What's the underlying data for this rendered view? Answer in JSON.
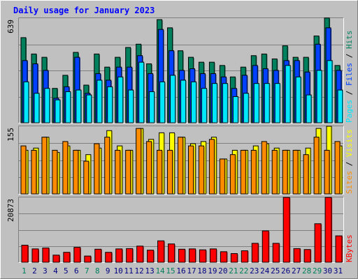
{
  "title": "Daily usage for January 2023",
  "colors": {
    "background": "#c0c0c0",
    "panel": "#c0c0c0",
    "grid": "#808080",
    "title": "#0000ff",
    "hits": "#00805c",
    "files": "#0040ff",
    "pages": "#00e8ff",
    "visits": "#ffff00",
    "sites": "#ff8c00",
    "kbytes": "#ff0000",
    "weekend_day": "#00805c",
    "weekday_day": "#000080"
  },
  "chart_data": [
    {
      "type": "bar",
      "name": "hits-files-pages",
      "ymax_label": "639",
      "ylim": [
        0,
        639
      ],
      "legend": {
        "pages": "Pages",
        "files": "Files",
        "hits": "Hits",
        "sep": " / "
      },
      "categories": [
        "1",
        "2",
        "3",
        "4",
        "5",
        "6",
        "7",
        "8",
        "9",
        "10",
        "11",
        "12",
        "13",
        "14",
        "15",
        "16",
        "17",
        "18",
        "19",
        "20",
        "21",
        "22",
        "23",
        "24",
        "25",
        "26",
        "27",
        "28",
        "29",
        "30",
        "31"
      ],
      "series": [
        {
          "name": "Hits",
          "values": [
            520,
            420,
            400,
            210,
            290,
            430,
            230,
            420,
            340,
            400,
            460,
            480,
            360,
            630,
            580,
            440,
            400,
            370,
            370,
            350,
            280,
            340,
            410,
            420,
            390,
            470,
            400,
            400,
            530,
            640,
            350
          ]
        },
        {
          "name": "Files",
          "values": [
            380,
            360,
            320,
            150,
            220,
            400,
            180,
            300,
            260,
            340,
            340,
            410,
            300,
            570,
            440,
            320,
            330,
            300,
            300,
            280,
            210,
            290,
            350,
            330,
            320,
            380,
            380,
            310,
            480,
            580,
            320
          ]
        },
        {
          "name": "Pages",
          "values": [
            250,
            180,
            210,
            140,
            190,
            200,
            170,
            260,
            220,
            280,
            200,
            370,
            190,
            250,
            290,
            260,
            250,
            210,
            240,
            240,
            160,
            180,
            240,
            240,
            240,
            350,
            280,
            170,
            320,
            380,
            200
          ]
        }
      ]
    },
    {
      "type": "bar",
      "name": "visits-sites",
      "ymax_label": "155",
      "ylim": [
        0,
        155
      ],
      "legend": {
        "sites": "Sites",
        "visits": "Visits",
        "sep": " / "
      },
      "categories": [
        "1",
        "2",
        "3",
        "4",
        "5",
        "6",
        "7",
        "8",
        "9",
        "10",
        "11",
        "12",
        "13",
        "14",
        "15",
        "16",
        "17",
        "18",
        "19",
        "20",
        "21",
        "22",
        "23",
        "24",
        "25",
        "26",
        "27",
        "28",
        "29",
        "30",
        "31"
      ],
      "series": [
        {
          "name": "Visits",
          "values": [
            100,
            105,
            130,
            95,
            110,
            100,
            90,
            105,
            145,
            110,
            100,
            150,
            125,
            140,
            140,
            130,
            115,
            120,
            130,
            80,
            100,
            100,
            110,
            115,
            105,
            100,
            100,
            105,
            150,
            155,
            110
          ]
        },
        {
          "name": "Sites",
          "values": [
            110,
            100,
            130,
            100,
            120,
            100,
            75,
            115,
            130,
            100,
            100,
            150,
            120,
            100,
            100,
            130,
            110,
            110,
            125,
            80,
            90,
            100,
            100,
            120,
            100,
            100,
            100,
            90,
            130,
            100,
            120
          ]
        }
      ]
    },
    {
      "type": "bar",
      "name": "kbytes",
      "ymax_label": "20873",
      "ylim": [
        0,
        20873
      ],
      "legend": {
        "kbytes": "KBytes"
      },
      "categories": [
        "1",
        "2",
        "3",
        "4",
        "5",
        "6",
        "7",
        "8",
        "9",
        "10",
        "11",
        "12",
        "13",
        "14",
        "15",
        "16",
        "17",
        "18",
        "19",
        "20",
        "21",
        "22",
        "23",
        "24",
        "25",
        "26",
        "27",
        "28",
        "29",
        "30",
        "31"
      ],
      "series": [
        {
          "name": "KBytes",
          "values": [
            5500,
            4300,
            4600,
            2300,
            3200,
            4800,
            2000,
            4200,
            3200,
            4300,
            4400,
            5200,
            3900,
            6900,
            5900,
            4200,
            4300,
            4000,
            4300,
            3400,
            2800,
            3700,
            6100,
            10100,
            6100,
            20873,
            4400,
            4100,
            12400,
            20873,
            8500
          ]
        }
      ]
    }
  ],
  "weekend_days": [
    "1",
    "7",
    "8",
    "14",
    "15",
    "21",
    "22",
    "28",
    "29"
  ]
}
